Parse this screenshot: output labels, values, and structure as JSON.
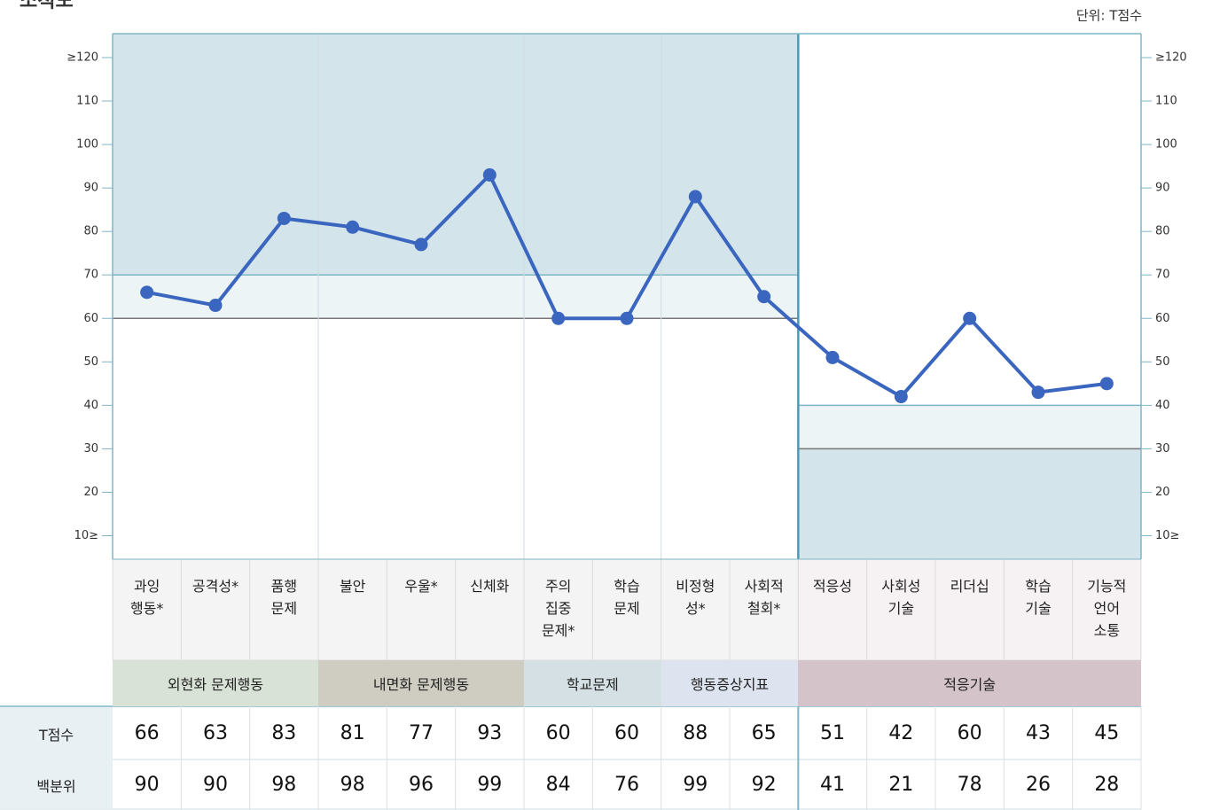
{
  "title": "소척도",
  "unit": "단위: T점수",
  "chart_data": {
    "type": "line",
    "groups": [
      {
        "name": "외현화 문제행동",
        "color": "#d8e2d6",
        "label_color": "#f4f4f4",
        "categories": [
          "과잉\n행동*",
          "공격성*",
          "품행\n문제"
        ],
        "cutoffs": [
          60,
          70
        ],
        "direction": "high"
      },
      {
        "name": "내면화 문제행동",
        "color": "#cfcdc2",
        "label_color": "#f4f4f4",
        "categories": [
          "불안",
          "우울*",
          "신체화"
        ],
        "cutoffs": [
          60,
          70
        ],
        "direction": "high"
      },
      {
        "name": "학교문제",
        "color": "#d5e0e4",
        "label_color": "#f4f4f4",
        "categories": [
          "주의\n집중\n문제*",
          "학습\n문제"
        ],
        "cutoffs": [
          60,
          70
        ],
        "direction": "high"
      },
      {
        "name": "행동증상지표",
        "color": "#dee4ef",
        "label_color": "#f4f4f4",
        "categories": [
          "비정형\n성*",
          "사회적\n철회*"
        ],
        "cutoffs": [
          60,
          70
        ],
        "direction": "high"
      },
      {
        "name": "적응기술",
        "color": "#d4c3c9",
        "label_color": "#f6f1f3",
        "categories": [
          "적응성",
          "사회성\n기술",
          "리더십",
          "학습\n기술",
          "기능적\n언어\n소통"
        ],
        "cutoffs": [
          30,
          40
        ],
        "direction": "low"
      }
    ],
    "series": [
      {
        "name": "T점수",
        "color": "#3a66c0",
        "values": [
          66,
          63,
          83,
          81,
          77,
          93,
          60,
          60,
          88,
          65,
          51,
          42,
          60,
          43,
          45
        ]
      }
    ],
    "percentile": {
      "name": "백분위",
      "values": [
        90,
        90,
        98,
        98,
        96,
        99,
        84,
        76,
        99,
        92,
        41,
        21,
        78,
        26,
        28
      ]
    },
    "ylim": [
      4.6,
      125.5
    ],
    "yticks": [
      {
        "value": 10,
        "label": "10≥"
      },
      20,
      30,
      40,
      50,
      60,
      70,
      80,
      90,
      100,
      110,
      {
        "value": 120,
        "label": "≥120"
      }
    ]
  }
}
